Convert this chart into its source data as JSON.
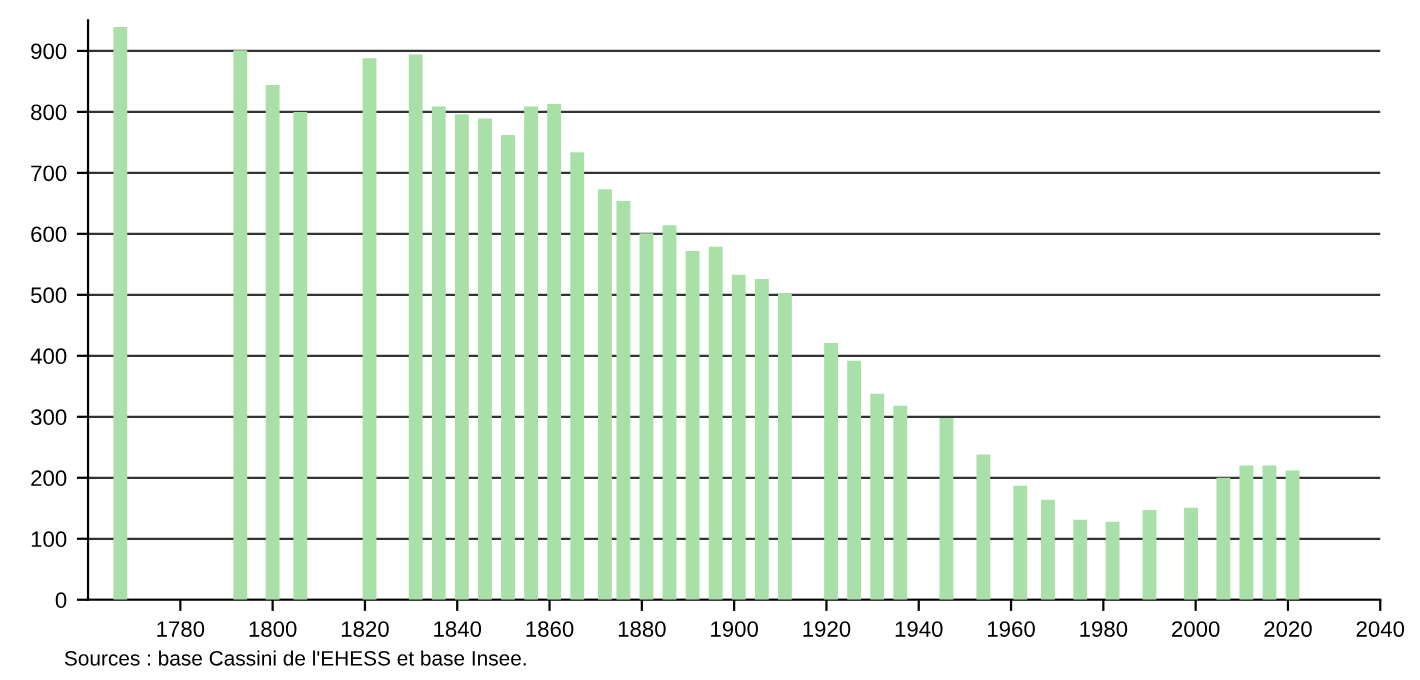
{
  "chart_data": {
    "type": "bar",
    "x": [
      1767,
      1793,
      1800,
      1806,
      1821,
      1831,
      1836,
      1841,
      1846,
      1851,
      1856,
      1861,
      1866,
      1872,
      1876,
      1881,
      1886,
      1891,
      1896,
      1901,
      1906,
      1911,
      1921,
      1926,
      1931,
      1936,
      1946,
      1954,
      1962,
      1968,
      1975,
      1982,
      1990,
      1999,
      2006,
      2011,
      2016,
      2021
    ],
    "values": [
      939,
      901,
      844,
      800,
      888,
      894,
      809,
      796,
      789,
      762,
      809,
      813,
      734,
      673,
      654,
      601,
      614,
      572,
      579,
      533,
      526,
      503,
      421,
      392,
      338,
      318,
      298,
      238,
      187,
      164,
      131,
      128,
      147,
      151,
      200,
      220,
      220,
      212
    ],
    "color": "#a8e0a8",
    "xlim": [
      1760,
      2040
    ],
    "xticks": [
      1780,
      1800,
      1820,
      1840,
      1860,
      1880,
      1900,
      1920,
      1940,
      1960,
      1980,
      2000,
      2020,
      2040
    ],
    "ylim": [
      0,
      950
    ],
    "yticks": [
      0,
      100,
      200,
      300,
      400,
      500,
      600,
      700,
      800,
      900
    ],
    "grid": "y",
    "annotations": [
      "Sources : base Cassini de l'EHESS et base Insee."
    ]
  }
}
